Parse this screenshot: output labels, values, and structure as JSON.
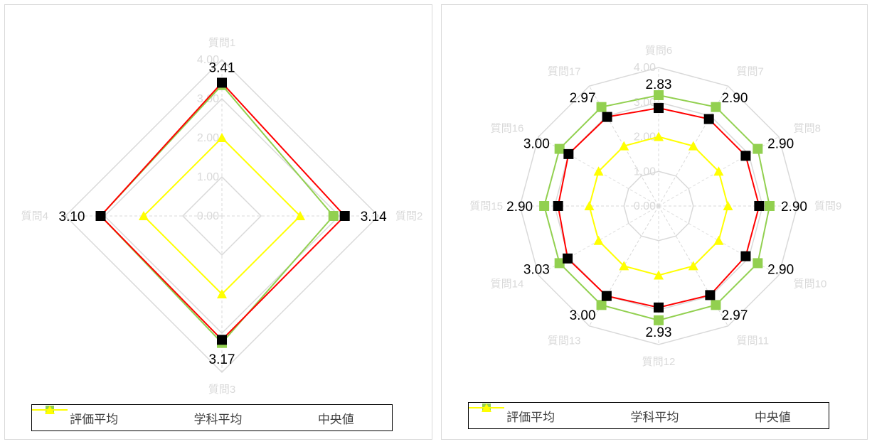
{
  "legend": {
    "avg_label": "評価平均",
    "dept_label": "学科平均",
    "median_label": "中央値"
  },
  "colors": {
    "avg": "#ff0000",
    "avg_marker": "#000000",
    "dept": "#92d050",
    "median": "#ffff00",
    "grid": "#d9d9d9",
    "axis_text": "#d9d9d9"
  },
  "chart_data": [
    {
      "type": "radar",
      "categories": [
        "質問1",
        "質問2",
        "質問3",
        "質問4"
      ],
      "rlim": [
        0,
        4
      ],
      "ticks": [
        "0.00",
        "1.00",
        "2.00",
        "3.00",
        "4.00"
      ],
      "series": [
        {
          "name": "評価平均",
          "values": [
            3.41,
            3.14,
            3.17,
            3.1
          ]
        },
        {
          "name": "学科平均",
          "values": [
            3.35,
            2.85,
            3.25,
            3.1
          ]
        },
        {
          "name": "中央値",
          "values": [
            2.0,
            2.0,
            2.0,
            2.0
          ]
        }
      ],
      "data_labels": [
        "3.41",
        "3.14",
        "3.17",
        "3.10"
      ],
      "legend_position": "bottom",
      "grid": true
    },
    {
      "type": "radar",
      "categories": [
        "質問6",
        "質問7",
        "質問8",
        "質問9",
        "質問10",
        "質問11",
        "質問12",
        "質問13",
        "質問14",
        "質問15",
        "質問16",
        "質問17"
      ],
      "rlim": [
        0,
        4
      ],
      "ticks": [
        "0.00",
        "1.00",
        "2.00",
        "3.00",
        "4.00"
      ],
      "series": [
        {
          "name": "評価平均",
          "values": [
            2.83,
            2.9,
            2.9,
            2.9,
            2.9,
            2.97,
            2.93,
            3.0,
            3.03,
            2.9,
            3.0,
            2.97
          ]
        },
        {
          "name": "学科平均",
          "values": [
            3.2,
            3.3,
            3.3,
            3.2,
            3.3,
            3.3,
            3.3,
            3.3,
            3.3,
            3.3,
            3.3,
            3.3
          ]
        },
        {
          "name": "中央値",
          "values": [
            2.0,
            2.0,
            2.0,
            2.0,
            2.0,
            2.0,
            2.0,
            2.0,
            2.0,
            2.0,
            2.0,
            2.0
          ]
        }
      ],
      "data_labels": [
        "2.83",
        "2.90",
        "2.90",
        "2.90",
        "2.90",
        "2.97",
        "2.93",
        "3.00",
        "3.03",
        "2.90",
        "3.00",
        "2.97"
      ],
      "legend_position": "bottom",
      "grid": true
    }
  ]
}
